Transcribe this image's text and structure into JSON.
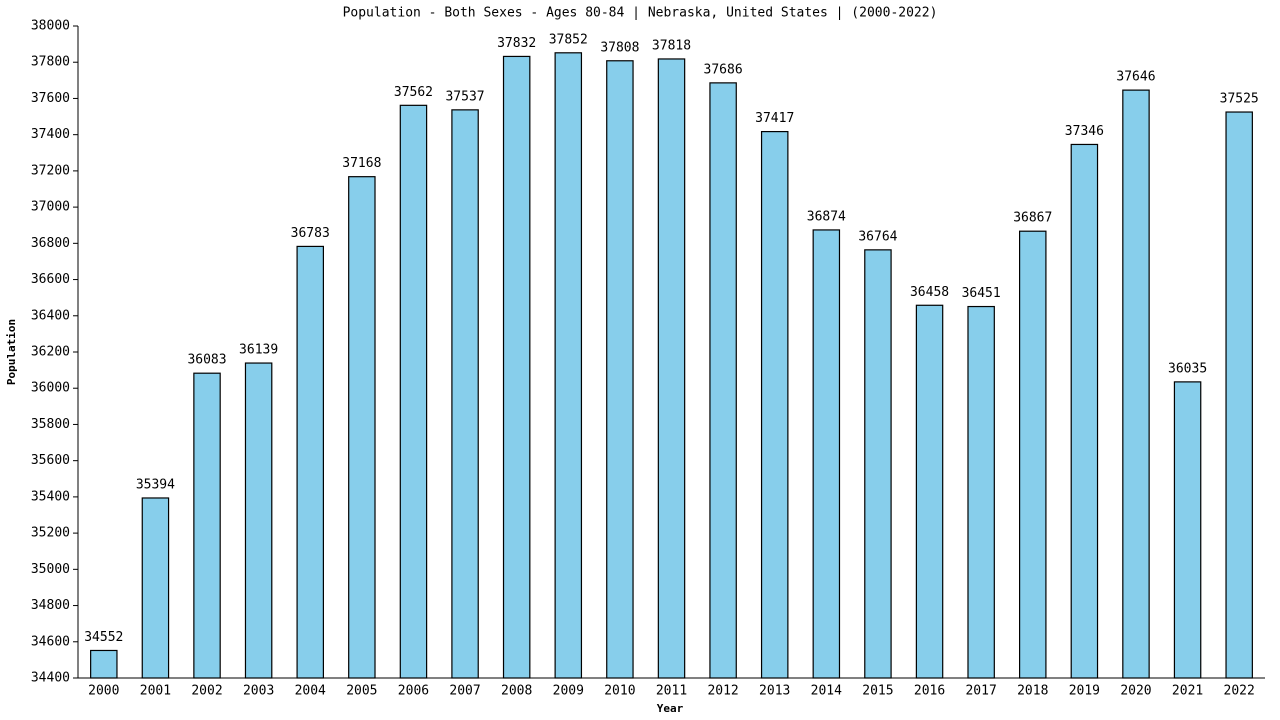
{
  "chart_data": {
    "type": "bar",
    "title": "Population - Both Sexes - Ages 80-84 | Nebraska, United States |  (2000-2022)",
    "x_label": "Year",
    "y_label": "Population",
    "categories": [
      "2000",
      "2001",
      "2002",
      "2003",
      "2004",
      "2005",
      "2006",
      "2007",
      "2008",
      "2009",
      "2010",
      "2011",
      "2012",
      "2013",
      "2014",
      "2015",
      "2016",
      "2017",
      "2018",
      "2019",
      "2020",
      "2021",
      "2022"
    ],
    "values": [
      34552,
      35394,
      36083,
      36139,
      36783,
      37168,
      37562,
      37537,
      37832,
      37852,
      37808,
      37818,
      37686,
      37417,
      36874,
      36764,
      36458,
      36451,
      36867,
      37346,
      37646,
      36035,
      37525
    ],
    "color": "#87ceeb",
    "ylim": [
      34400,
      38000
    ],
    "yticks": [
      34400,
      34600,
      34800,
      35000,
      35200,
      35400,
      35600,
      35800,
      36000,
      36200,
      36400,
      36600,
      36800,
      37000,
      37200,
      37400,
      37600,
      37800,
      38000
    ],
    "grid": false
  }
}
